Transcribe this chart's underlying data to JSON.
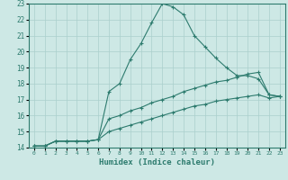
{
  "title": "",
  "xlabel": "Humidex (Indice chaleur)",
  "ylabel": "",
  "xlim": [
    -0.5,
    23.5
  ],
  "ylim": [
    14,
    23
  ],
  "yticks": [
    14,
    15,
    16,
    17,
    18,
    19,
    20,
    21,
    22,
    23
  ],
  "xticks": [
    0,
    1,
    2,
    3,
    4,
    5,
    6,
    7,
    8,
    9,
    10,
    11,
    12,
    13,
    14,
    15,
    16,
    17,
    18,
    19,
    20,
    21,
    22,
    23
  ],
  "background_color": "#cde8e5",
  "grid_color": "#aacfcc",
  "line_color": "#2d7b6e",
  "lines": [
    {
      "x": [
        0,
        1,
        2,
        3,
        4,
        5,
        6,
        7,
        8,
        9,
        10,
        11,
        12,
        13,
        14,
        15,
        16,
        17,
        18,
        19,
        20,
        21,
        22,
        23
      ],
      "y": [
        14.1,
        14.1,
        14.4,
        14.4,
        14.4,
        14.4,
        14.5,
        17.5,
        18.0,
        19.5,
        20.5,
        21.8,
        23.0,
        22.8,
        22.3,
        21.0,
        20.3,
        19.6,
        19.0,
        18.5,
        18.5,
        18.3,
        17.3,
        17.2
      ]
    },
    {
      "x": [
        0,
        1,
        2,
        3,
        4,
        5,
        6,
        7,
        8,
        9,
        10,
        11,
        12,
        13,
        14,
        15,
        16,
        17,
        18,
        19,
        20,
        21,
        22,
        23
      ],
      "y": [
        14.1,
        14.1,
        14.4,
        14.4,
        14.4,
        14.4,
        14.5,
        15.8,
        16.0,
        16.3,
        16.5,
        16.8,
        17.0,
        17.2,
        17.5,
        17.7,
        17.9,
        18.1,
        18.2,
        18.4,
        18.6,
        18.7,
        17.3,
        17.2
      ]
    },
    {
      "x": [
        0,
        1,
        2,
        3,
        4,
        5,
        6,
        7,
        8,
        9,
        10,
        11,
        12,
        13,
        14,
        15,
        16,
        17,
        18,
        19,
        20,
        21,
        22,
        23
      ],
      "y": [
        14.1,
        14.1,
        14.4,
        14.4,
        14.4,
        14.4,
        14.5,
        15.0,
        15.2,
        15.4,
        15.6,
        15.8,
        16.0,
        16.2,
        16.4,
        16.6,
        16.7,
        16.9,
        17.0,
        17.1,
        17.2,
        17.3,
        17.1,
        17.2
      ]
    }
  ]
}
